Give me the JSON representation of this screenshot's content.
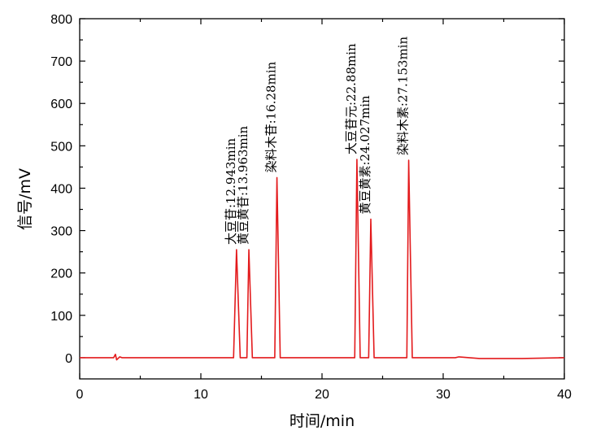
{
  "chart_data": {
    "type": "line",
    "title": "",
    "xlabel": "时间/min",
    "ylabel": "信号/mV",
    "xlim": [
      0,
      40
    ],
    "ylim": [
      -50,
      800
    ],
    "xticks": [
      0,
      10,
      20,
      30,
      40
    ],
    "xtick_labels": [
      "0",
      "10",
      "20",
      "30",
      "40"
    ],
    "yticks": [
      0,
      100,
      200,
      300,
      400,
      500,
      600,
      700,
      800
    ],
    "ytick_labels": [
      "0",
      "100",
      "200",
      "300",
      "400",
      "500",
      "600",
      "700",
      "800"
    ],
    "grid": false,
    "colors": {
      "line": "#e31a1c",
      "axis": "#000000"
    },
    "series": [
      {
        "x": [
          0.0,
          2.8,
          2.95,
          3.05,
          3.3,
          3.5,
          12.7,
          12.943,
          13.25,
          13.8,
          13.963,
          14.25,
          16.1,
          16.28,
          16.55,
          22.7,
          22.88,
          23.15,
          23.85,
          24.027,
          24.3,
          27.0,
          27.153,
          27.45,
          31.0,
          31.3,
          33.0,
          36.5,
          40.0
        ],
        "values": [
          0,
          0,
          8,
          -5,
          2,
          0,
          0,
          255,
          0,
          0,
          255,
          0,
          0,
          425,
          0,
          0,
          468,
          0,
          0,
          327,
          0,
          0,
          466,
          0,
          0,
          2,
          -2,
          -2,
          0
        ]
      }
    ],
    "annotations": [
      {
        "text": "大豆苷:12.943min",
        "x": 12.943,
        "y": 255
      },
      {
        "text": "黄豆黄苷:13.963min",
        "x": 13.963,
        "y": 255
      },
      {
        "text": "染料木苷:16.28min",
        "x": 16.28,
        "y": 425
      },
      {
        "text": "大豆苷元:22.88min",
        "x": 22.88,
        "y": 468
      },
      {
        "text": "黄豆黄素:24.027min",
        "x": 24.027,
        "y": 327
      },
      {
        "text": "染料木素:27.153min",
        "x": 27.153,
        "y": 466
      }
    ]
  }
}
